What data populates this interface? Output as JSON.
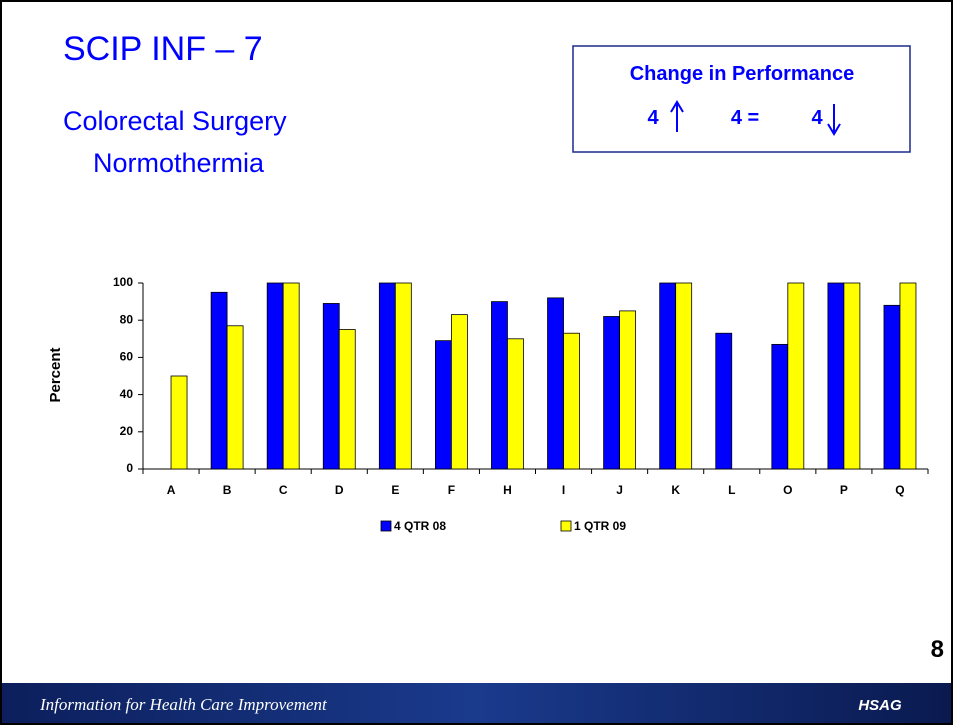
{
  "slide": {
    "title": "SCIP INF – 7",
    "subtitle_lines": [
      "Colorectal Surgery",
      "Normothermia"
    ],
    "box": {
      "title": "Change in Performance",
      "improved": "4",
      "same": "4 =",
      "declined": "4"
    },
    "page_number": "8",
    "footer": "Information for Health Care Improvement",
    "logo": "HSAG"
  },
  "chart_data": {
    "type": "bar",
    "y_label": "Percent",
    "categories": [
      "A",
      "B",
      "C",
      "D",
      "E",
      "F",
      "H",
      "I",
      "J",
      "K",
      "L",
      "O",
      "P",
      "Q"
    ],
    "series": [
      {
        "name": "4 QTR 08",
        "color": "#0000ff",
        "values": [
          null,
          95,
          100,
          89,
          100,
          69,
          90,
          92,
          82,
          100,
          73,
          67,
          100,
          88
        ]
      },
      {
        "name": "1 QTR 09",
        "color": "#ffff00",
        "values": [
          50,
          77,
          100,
          75,
          100,
          83,
          70,
          73,
          85,
          100,
          null,
          100,
          100,
          100
        ]
      }
    ],
    "ylim": [
      0,
      100
    ],
    "yticks": [
      0,
      20,
      40,
      60,
      80,
      100
    ],
    "grid": false,
    "legend": "bottom"
  }
}
